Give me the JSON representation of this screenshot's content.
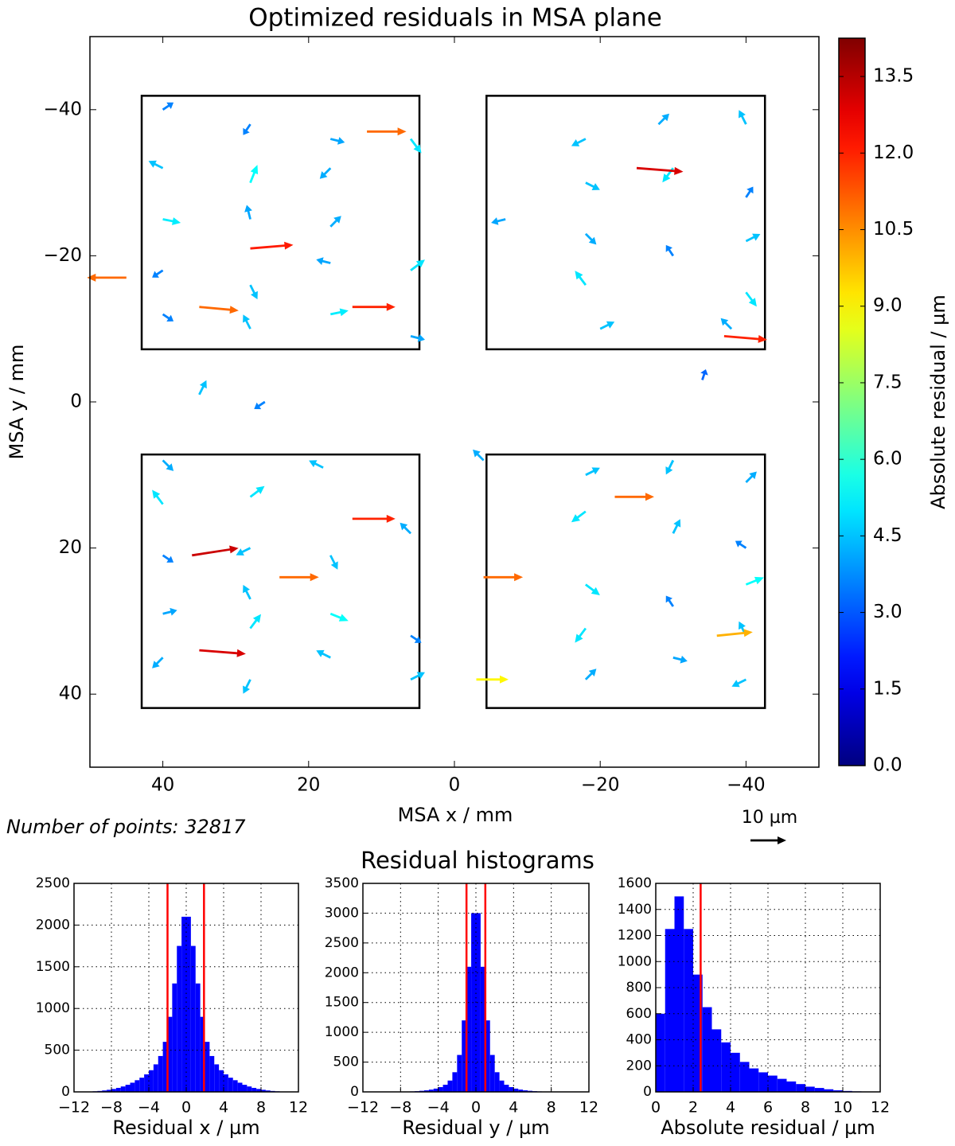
{
  "chart_data": [
    {
      "type": "quiver",
      "title": "Optimized residuals in MSA plane",
      "xlabel": "MSA x / mm",
      "ylabel": "MSA y / mm",
      "annotation": "Number of points: 32817",
      "key": {
        "label": "10 µm",
        "value": 10
      },
      "xlim": [
        50,
        -50
      ],
      "ylim": [
        50,
        -50
      ],
      "xticks": [
        40,
        20,
        0,
        {
          "value": -20,
          "label": "−20"
        },
        {
          "value": -40,
          "label": "−40"
        }
      ],
      "yticks": [
        {
          "value": -40,
          "label": "−40"
        },
        {
          "value": -20,
          "label": "−20"
        },
        0,
        20,
        40
      ],
      "boxes": [
        {
          "x": [
            42.9,
            4.8
          ],
          "y": [
            -41.9,
            -7.2
          ]
        },
        {
          "x": [
            -4.4,
            -42.6
          ],
          "y": [
            -41.9,
            -7.2
          ]
        },
        {
          "x": [
            42.9,
            4.8
          ],
          "y": [
            7.2,
            41.9
          ]
        },
        {
          "x": [
            -4.4,
            -42.6
          ],
          "y": [
            7.2,
            41.9
          ]
        }
      ],
      "arrows": {
        "x": [
          40,
          28,
          17,
          6,
          40,
          28,
          17,
          40,
          28,
          17,
          40,
          28,
          17,
          6,
          40,
          28,
          17,
          6,
          -18,
          -28,
          -40,
          -18,
          -30,
          -40,
          -7,
          -18,
          -30,
          -40,
          -18,
          -40,
          -20,
          -38,
          35,
          26,
          -34,
          40,
          18,
          40,
          28,
          40,
          28,
          17,
          6,
          40,
          28,
          17,
          40,
          28,
          17,
          6,
          28,
          6,
          -4,
          -18,
          -30,
          -40,
          -18,
          -30,
          -40,
          -18,
          -30,
          -40,
          -18,
          -30,
          -40,
          -18,
          -40,
          -25,
          -37,
          12,
          28,
          35,
          14,
          36,
          24,
          35,
          14,
          -22,
          -36,
          45,
          -4,
          -3
        ],
        "y": [
          -40,
          -38,
          -36,
          -36,
          -32,
          -30,
          -32,
          -25,
          -25,
          -24,
          -18,
          -16,
          -19,
          -18,
          -12,
          -10,
          -12,
          -9,
          -36,
          -38,
          -38,
          -30,
          -32,
          -28,
          -25,
          -23,
          -20,
          -22,
          -16,
          -15,
          -10,
          -10,
          -1,
          0,
          -3,
          8,
          9,
          14,
          13,
          21,
          20,
          21,
          18,
          29,
          27,
          29,
          35,
          31,
          35,
          32,
          38,
          38,
          8,
          10,
          8,
          11,
          15,
          18,
          20,
          25,
          28,
          25,
          31,
          35,
          32,
          38,
          38,
          -32,
          -9,
          -37,
          -21,
          -13,
          -13,
          21,
          24,
          34,
          16,
          13,
          32,
          -17,
          24,
          38
        ],
        "u": [
          -3,
          2,
          -4,
          -3,
          4,
          -2,
          3,
          -5,
          1,
          -3,
          3,
          -2,
          4,
          -4,
          -3,
          2,
          -5,
          -4,
          4,
          -3,
          2,
          -4,
          3,
          -2,
          4,
          -3,
          2,
          -4,
          3,
          -3,
          -4,
          3,
          -2,
          3,
          -1,
          -3,
          4,
          3,
          -4,
          -3,
          4,
          -2,
          3,
          -4,
          2,
          -5,
          3,
          -3,
          4,
          -3,
          2,
          -4,
          3,
          -4,
          2,
          -3,
          4,
          -2,
          3,
          -4,
          2,
          -5,
          3,
          -4,
          2,
          -3,
          4,
          -13,
          -12,
          -11,
          -12,
          -11,
          -12,
          -13,
          -11,
          -13,
          -12,
          -11,
          -10,
          11,
          -11,
          -9
        ],
        "v": [
          -2,
          3,
          1,
          4,
          -2,
          -5,
          3,
          1,
          -4,
          -3,
          2,
          4,
          -1,
          -3,
          2,
          -4,
          -1,
          1,
          2,
          -3,
          -4,
          2,
          4,
          -3,
          1,
          3,
          -3,
          -2,
          -4,
          4,
          -2,
          -3,
          -4,
          2,
          -3,
          3,
          -2,
          -4,
          -3,
          2,
          2,
          4,
          -3,
          -1,
          -4,
          2,
          3,
          -4,
          -2,
          2,
          4,
          -2,
          -3,
          -2,
          4,
          -3,
          3,
          -4,
          -2,
          3,
          -3,
          -2,
          4,
          1,
          -4,
          -3,
          2,
          1,
          1,
          0,
          -1,
          1,
          0,
          -2,
          0,
          1,
          0,
          0,
          -1,
          0,
          0,
          0
        ],
        "magnitude": [
          3.6,
          3.6,
          4.1,
          5.0,
          4.5,
          5.4,
          4.2,
          5.1,
          4.1,
          4.2,
          3.6,
          4.5,
          4.1,
          5.0,
          3.6,
          4.5,
          5.1,
          4.1,
          4.5,
          4.2,
          4.5,
          4.5,
          5.0,
          3.6,
          4.1,
          4.2,
          3.6,
          4.5,
          5.0,
          5.0,
          4.5,
          4.2,
          4.5,
          3.6,
          3.2,
          4.2,
          4.5,
          5.0,
          5.0,
          3.6,
          4.5,
          4.5,
          4.2,
          4.1,
          4.5,
          5.4,
          4.2,
          5.0,
          4.5,
          3.6,
          4.5,
          4.5,
          4.2,
          4.5,
          4.5,
          4.2,
          5.0,
          4.5,
          3.6,
          5.0,
          3.6,
          5.4,
          5.0,
          4.1,
          4.5,
          4.2,
          4.5,
          13.0,
          12.0,
          11.0,
          12.1,
          11.0,
          12.0,
          13.2,
          11.0,
          13.0,
          12.0,
          11.0,
          10.0,
          11.0,
          11.0,
          9.0
        ]
      },
      "colorbar": {
        "label": "Absolute residual / µm",
        "ylim": [
          0,
          14.25
        ],
        "colormap": "jet",
        "yticks": [
          {
            "value": 0,
            "label": "0.0"
          },
          1.5,
          {
            "value": 3,
            "label": "3.0"
          },
          4.5,
          {
            "value": 6,
            "label": "6.0"
          },
          7.5,
          {
            "value": 9,
            "label": "9.0"
          },
          10.5,
          {
            "value": 12,
            "label": "12.0"
          },
          13.5
        ]
      }
    },
    {
      "type": "histogram",
      "xlabel": "Residual x / µm",
      "color": "#0000ff",
      "line_color": "#ff0000",
      "grid": true,
      "bins": [
        -10,
        -9.5,
        -9,
        -8.5,
        -8,
        -7.5,
        -7,
        -6.5,
        -6,
        -5.5,
        -5,
        -4.5,
        -4,
        -3.5,
        -3,
        -2.5,
        -2,
        -1.5,
        -1,
        -0.5,
        0,
        0.5,
        1,
        1.5,
        2,
        2.5,
        3,
        3.5,
        4,
        4.5,
        5,
        5.5,
        6,
        6.5,
        7,
        7.5,
        8,
        8.5,
        9,
        9.5,
        10
      ],
      "values": [
        7,
        11,
        17,
        25,
        35,
        48,
        65,
        85,
        110,
        140,
        170,
        210,
        260,
        330,
        430,
        600,
        900,
        1300,
        1750,
        2100,
        2100,
        1750,
        1300,
        900,
        600,
        430,
        330,
        260,
        210,
        170,
        140,
        110,
        85,
        65,
        48,
        35,
        25,
        17,
        11,
        7
      ],
      "vlines": [
        -2,
        1.9
      ],
      "xlim": [
        -12,
        12
      ],
      "ylim": [
        0,
        2500
      ],
      "xticks": [
        {
          "value": -12,
          "label": "−12"
        },
        {
          "value": -8,
          "label": "−8"
        },
        {
          "value": -4,
          "label": "−4"
        },
        0,
        4,
        8,
        12
      ],
      "yticks": [
        0,
        500,
        1000,
        1500,
        2000,
        2500
      ]
    },
    {
      "type": "histogram",
      "xlabel": "Residual y / µm",
      "color": "#0000ff",
      "line_color": "#ff0000",
      "grid": true,
      "bins": [
        -10,
        -9.5,
        -9,
        -8.5,
        -8,
        -7.5,
        -7,
        -6.5,
        -6,
        -5.5,
        -5,
        -4.5,
        -4,
        -3.5,
        -3,
        -2.5,
        -2,
        -1.5,
        -1,
        -0.5,
        0,
        0.5,
        1,
        1.5,
        2,
        2.5,
        3,
        3.5,
        4,
        4.5,
        5,
        5.5,
        6,
        6.5,
        7,
        7.5,
        8,
        8.5,
        9,
        9.5,
        10
      ],
      "values": [
        0,
        1,
        1,
        2,
        3,
        5,
        8,
        12,
        18,
        26,
        38,
        55,
        80,
        120,
        190,
        330,
        620,
        1200,
        2100,
        3000,
        3000,
        2100,
        1200,
        620,
        330,
        190,
        120,
        80,
        55,
        38,
        26,
        18,
        12,
        8,
        5,
        3,
        2,
        1,
        1,
        0
      ],
      "vlines": [
        -1,
        1
      ],
      "xlim": [
        -12,
        12
      ],
      "ylim": [
        0,
        3500
      ],
      "xticks": [
        {
          "value": -12,
          "label": "−12"
        },
        {
          "value": -8,
          "label": "−8"
        },
        {
          "value": -4,
          "label": "−4"
        },
        0,
        4,
        8,
        12
      ],
      "yticks": [
        0,
        500,
        1000,
        1500,
        2000,
        2500,
        3000,
        3500
      ]
    },
    {
      "type": "histogram",
      "xlabel": "Absolute residual / µm",
      "color": "#0000ff",
      "line_color": "#ff0000",
      "grid": true,
      "bins": [
        0,
        0.5,
        1,
        1.5,
        2,
        2.5,
        3,
        3.5,
        4,
        4.5,
        5,
        5.5,
        6,
        6.5,
        7,
        7.5,
        8,
        8.5,
        9,
        9.5,
        10,
        10.5,
        11
      ],
      "values": [
        600,
        1250,
        1500,
        1250,
        900,
        650,
        480,
        380,
        300,
        230,
        180,
        150,
        125,
        100,
        80,
        60,
        40,
        30,
        20,
        12,
        7,
        4
      ],
      "vlines": [
        2.4
      ],
      "xlim": [
        0,
        12
      ],
      "ylim": [
        0,
        1600
      ],
      "xticks": [
        0,
        2,
        4,
        6,
        8,
        10,
        12
      ],
      "yticks": [
        0,
        200,
        400,
        600,
        800,
        1000,
        1200,
        1400,
        1600
      ]
    }
  ],
  "histograms_title": "Residual histograms"
}
